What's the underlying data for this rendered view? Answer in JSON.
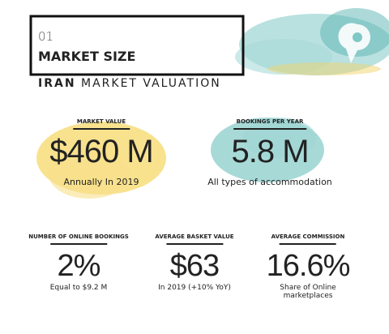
{
  "header": {
    "number": "01",
    "title": "MARKET SIZE"
  },
  "subtitle": {
    "bold": "IRAN",
    "rest": "MARKET VALUATION"
  },
  "stats": [
    {
      "label": "MARKET VALUE",
      "value": "$460 M",
      "note": "Annually In 2019"
    },
    {
      "label": "BOOKINGS PER YEAR",
      "value": "5.8 M",
      "note": "All types of accommodation"
    },
    {
      "label": "NUMBER OF ONLINE  BOOKINGS",
      "value": "2%",
      "note": "Equal to $9.2 M"
    },
    {
      "label": "AVERAGE BASKET VALUE",
      "value": "$63",
      "note": "In 2019 (+10% YoY)"
    },
    {
      "label": "AVERAGE COMMISSION",
      "value": "16.6%",
      "note": "Share of Online marketplaces"
    }
  ]
}
